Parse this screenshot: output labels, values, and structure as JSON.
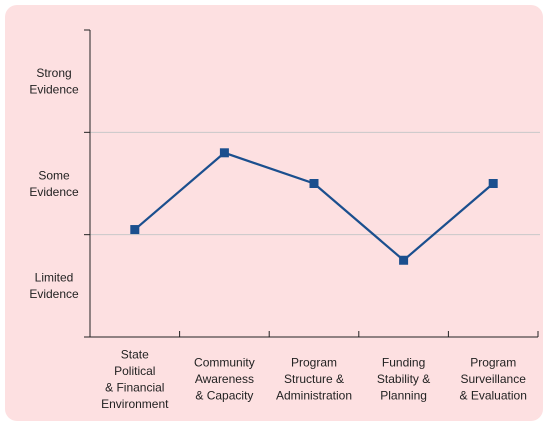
{
  "chart_data": {
    "type": "line",
    "categories": [
      "State\nPolitical\n& Financial\nEnvironment",
      "Community\nAwareness\n& Capacity",
      "Program\nStructure &\nAdministration",
      "Funding\nStability &\nPlanning",
      "Program\nSurveillance\n& Evaluation"
    ],
    "series": [
      {
        "color": "#1b4f8e",
        "values": [
          1.05,
          1.8,
          1.5,
          0.75,
          1.5
        ]
      }
    ],
    "ylim": [
      0,
      3
    ],
    "yticks": [
      {
        "value": 0.5,
        "label": "Limited\nEvidence"
      },
      {
        "value": 1.5,
        "label": "Some\nEvidence"
      },
      {
        "value": 2.5,
        "label": "Strong\nEvidence"
      }
    ],
    "yband_edges": [
      0,
      1,
      2,
      3
    ],
    "grid": true
  }
}
